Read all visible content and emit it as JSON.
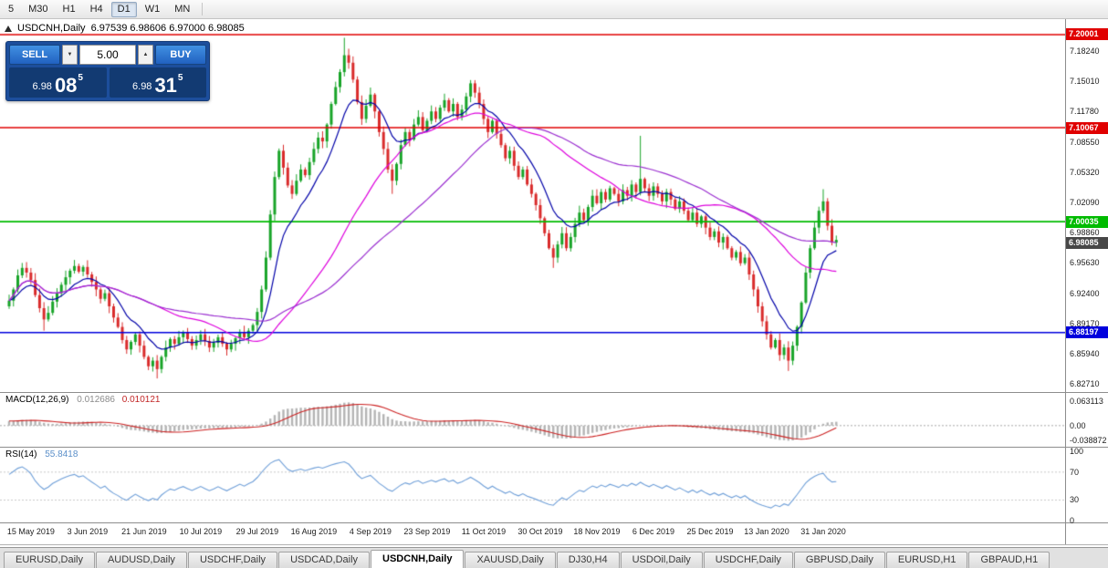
{
  "toolbar": {
    "timeframes": [
      {
        "label": "5",
        "active": false
      },
      {
        "label": "M30",
        "active": false
      },
      {
        "label": "H1",
        "active": false
      },
      {
        "label": "H4",
        "active": false
      },
      {
        "label": "D1",
        "active": true
      },
      {
        "label": "W1",
        "active": false
      },
      {
        "label": "MN",
        "active": false
      }
    ]
  },
  "chart_header": {
    "symbol_period": "USDCNH,Daily",
    "ohlc": "6.97539 6.98606 6.97000 6.98085"
  },
  "trade_panel": {
    "sell_label": "SELL",
    "buy_label": "BUY",
    "volume": "5.00",
    "sell_price": {
      "prefix": "6.98",
      "big": "08",
      "sup": "5"
    },
    "buy_price": {
      "prefix": "6.98",
      "big": "31",
      "sup": "5"
    }
  },
  "icons": {
    "spinner_down": "▼",
    "spinner_up": "▲"
  },
  "chart_data": {
    "type": "candlestick",
    "symbol": "USDCNH",
    "timeframe": "Daily",
    "current_bar": {
      "open": "6.97539",
      "high": "6.98606",
      "low": "6.97000",
      "close": "6.98085"
    },
    "price_range": {
      "top": 7.2165,
      "bottom": 6.8185
    },
    "candle_colors": {
      "up": "#18a428",
      "down": "#d92b2b"
    },
    "closes": [
      6.916,
      6.928,
      6.943,
      6.951,
      6.946,
      6.938,
      6.922,
      6.908,
      6.896,
      6.903,
      6.915,
      6.924,
      6.933,
      6.941,
      6.948,
      6.953,
      6.947,
      6.952,
      6.944,
      6.936,
      6.928,
      6.918,
      6.924,
      6.91,
      6.898,
      6.888,
      6.874,
      6.864,
      6.872,
      6.88,
      6.868,
      6.856,
      6.846,
      6.852,
      6.843,
      6.856,
      6.866,
      6.875,
      6.87,
      6.877,
      6.882,
      6.875,
      6.868,
      6.874,
      6.88,
      6.873,
      6.866,
      6.871,
      6.877,
      6.87,
      6.864,
      6.87,
      6.876,
      6.882,
      6.877,
      6.884,
      6.89,
      6.904,
      6.928,
      6.962,
      7.008,
      7.048,
      7.076,
      7.058,
      7.039,
      7.03,
      7.044,
      7.056,
      7.05,
      7.064,
      7.078,
      7.09,
      7.086,
      7.104,
      7.126,
      7.144,
      7.16,
      7.178,
      7.17,
      7.152,
      7.128,
      7.11,
      7.124,
      7.136,
      7.118,
      7.096,
      7.078,
      7.056,
      7.044,
      7.062,
      7.082,
      7.096,
      7.088,
      7.104,
      7.112,
      7.098,
      7.108,
      7.118,
      7.11,
      7.122,
      7.13,
      7.118,
      7.126,
      7.112,
      7.12,
      7.134,
      7.148,
      7.138,
      7.126,
      7.11,
      7.096,
      7.108,
      7.094,
      7.082,
      7.068,
      7.076,
      7.06,
      7.048,
      7.056,
      7.04,
      7.03,
      7.018,
      7.004,
      6.988,
      6.972,
      6.962,
      6.976,
      6.988,
      6.972,
      6.984,
      6.998,
      7.01,
      7.002,
      7.016,
      7.028,
      7.02,
      7.032,
      7.024,
      7.036,
      7.03,
      7.022,
      7.034,
      7.028,
      7.04,
      7.032,
      7.046,
      7.036,
      7.028,
      7.038,
      7.03,
      7.022,
      7.032,
      7.024,
      7.014,
      7.022,
      7.012,
      7.002,
      7.01,
      6.998,
      7.006,
      6.994,
      6.984,
      6.99,
      6.978,
      6.984,
      6.972,
      6.962,
      6.968,
      6.956,
      6.962,
      6.944,
      6.928,
      6.91,
      6.894,
      6.88,
      6.866,
      6.874,
      6.858,
      6.866,
      6.852,
      6.868,
      6.888,
      6.914,
      6.946,
      6.972,
      6.994,
      7.012,
      7.022,
      6.996,
      6.978,
      6.9809
    ],
    "wick_overrides": {
      "8": {
        "low": 6.884
      },
      "34": {
        "low": 6.833
      },
      "77": {
        "high": 7.1966
      },
      "88": {
        "low": 7.03
      },
      "125": {
        "low": 6.951
      },
      "145": {
        "high": 7.092
      },
      "179": {
        "low": 6.841
      },
      "187": {
        "high": 7.035
      }
    },
    "moving_averages": [
      {
        "type": "ema",
        "period": 10,
        "color": "#0000a8"
      },
      {
        "type": "sma",
        "period": 34,
        "color": "#dd00dd"
      },
      {
        "type": "sma",
        "period": 55,
        "color": "#9b30d0"
      }
    ],
    "horizontal_lines": [
      {
        "label": "7.20001",
        "value": 7.20001,
        "color": "#e00000"
      },
      {
        "label": "7.10067",
        "value": 7.10067,
        "color": "#e00000"
      },
      {
        "label": "7.00035",
        "value": 7.00035,
        "color": "#00bb00"
      },
      {
        "label": "6.88197",
        "value": 6.88197,
        "color": "#0000dd"
      }
    ],
    "current_price": {
      "label": "6.98085",
      "value": 6.98085,
      "color": "#474747"
    },
    "y_axis_ticks": [
      "7.18240",
      "7.15010",
      "7.11780",
      "7.08550",
      "7.05320",
      "7.02090",
      "6.98860",
      "6.95630",
      "6.92400",
      "6.89170",
      "6.85940",
      "6.82710"
    ],
    "x_axis_labels": [
      "15 May 2019",
      "3 Jun 2019",
      "21 Jun 2019",
      "10 Jul 2019",
      "29 Jul 2019",
      "16 Aug 2019",
      "4 Sep 2019",
      "23 Sep 2019",
      "11 Oct 2019",
      "30 Oct 2019",
      "18 Nov 2019",
      "6 Dec 2019",
      "25 Dec 2019",
      "13 Jan 2020",
      "31 Jan 2020"
    ],
    "indicators": {
      "macd": {
        "name": "MACD(12,26,9)",
        "value_main": "0.012686",
        "value_signal": "0.010121",
        "axis_labels": [
          "0.063113",
          "0.00",
          "-0.038872"
        ],
        "range": {
          "max": 0.085,
          "min": -0.055
        },
        "histogram_color": "#b4b4b4",
        "signal_color": "#cc2222"
      },
      "rsi": {
        "name": "RSI(14)",
        "value": "55.8418",
        "axis_labels": [
          "100",
          "70",
          "30",
          "0"
        ],
        "levels": [
          70,
          30
        ],
        "color": "#6f9fd8",
        "range": {
          "max": 105,
          "min": -2
        }
      }
    }
  },
  "tabbar": {
    "tabs": [
      {
        "label": "EURUSD,Daily",
        "active": false
      },
      {
        "label": "AUDUSD,Daily",
        "active": false
      },
      {
        "label": "USDCHF,Daily",
        "active": false
      },
      {
        "label": "USDCAD,Daily",
        "active": false
      },
      {
        "label": "USDCNH,Daily",
        "active": true
      },
      {
        "label": "XAUUSD,Daily",
        "active": false
      },
      {
        "label": "DJ30,H4",
        "active": false
      },
      {
        "label": "USDOil,Daily",
        "active": false
      },
      {
        "label": "USDCHF,Daily",
        "active": false
      },
      {
        "label": "GBPUSD,Daily",
        "active": false
      },
      {
        "label": "EURUSD,H1",
        "active": false
      },
      {
        "label": "GBPAUD,H1",
        "active": false
      }
    ]
  }
}
